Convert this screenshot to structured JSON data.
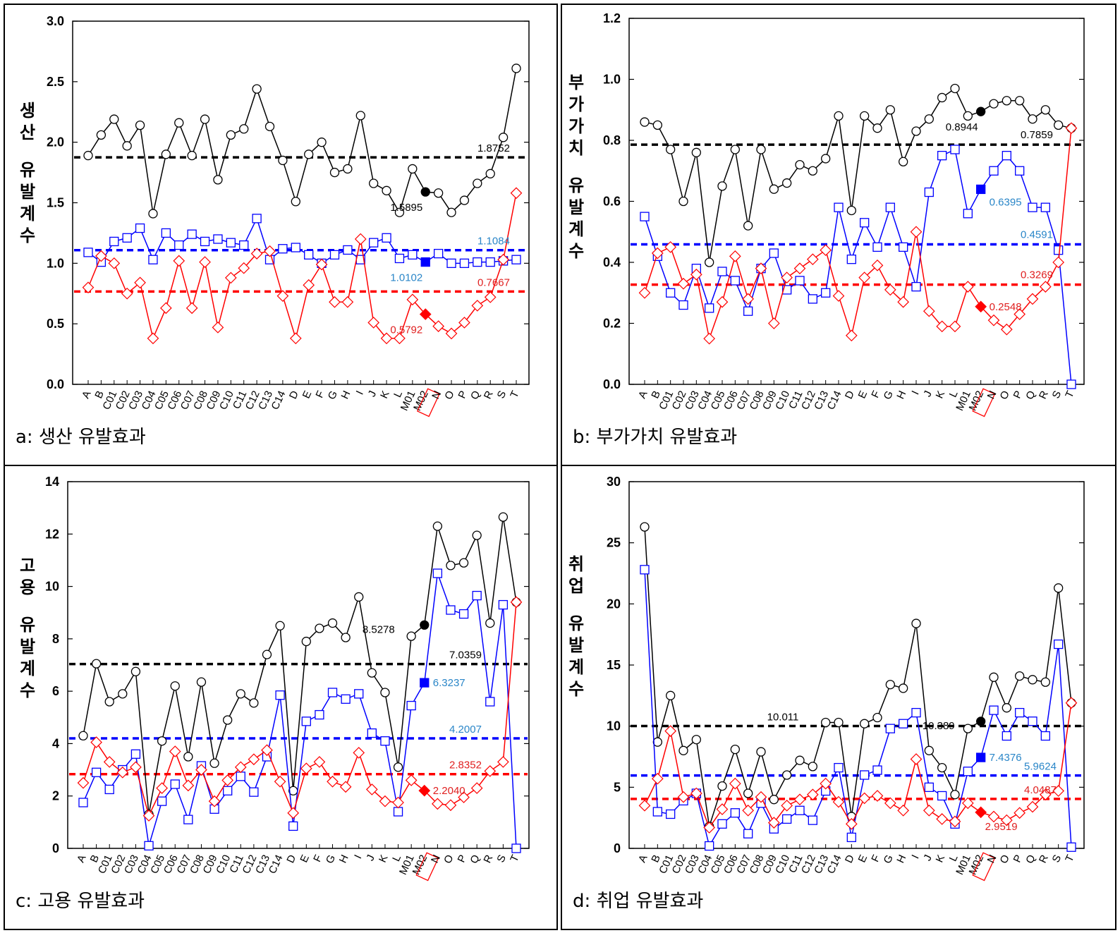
{
  "categories": [
    "A",
    "B",
    "C01",
    "C02",
    "C03",
    "C04",
    "C05",
    "C06",
    "C07",
    "C08",
    "C09",
    "C10",
    "C11",
    "C12",
    "C13",
    "C14",
    "D",
    "E",
    "F",
    "G",
    "H",
    "I",
    "J",
    "K",
    "L",
    "M01",
    "M02",
    "N",
    "O",
    "P",
    "Q",
    "R",
    "S",
    "T"
  ],
  "highlight_category": "M02",
  "colors": {
    "black": "#000000",
    "blue": "#0000ff",
    "red": "#ff0000",
    "blue_label": "#2a86c8",
    "red_label": "#e02020"
  },
  "chart_data": [
    {
      "id": "a",
      "type": "line",
      "caption": "a: 생산 유발효과",
      "ylabel": "생산 유발계수",
      "ylim": [
        0,
        3.0
      ],
      "yticks": [
        "0.0",
        "0.5",
        "1.0",
        "1.5",
        "2.0",
        "2.5",
        "3.0"
      ],
      "grid": false,
      "series": [
        {
          "color": "black",
          "marker": "circle",
          "values": [
            1.89,
            2.06,
            2.19,
            1.97,
            2.14,
            1.41,
            1.9,
            2.16,
            1.89,
            2.19,
            1.69,
            2.06,
            2.11,
            2.44,
            2.13,
            1.85,
            1.51,
            1.9,
            2.0,
            1.75,
            1.78,
            2.22,
            1.66,
            1.6,
            1.42,
            1.78,
            1.5895,
            1.58,
            1.42,
            1.52,
            1.66,
            1.74,
            2.04,
            2.61
          ],
          "mean": 1.8752,
          "mean_label": "1.8752",
          "highlight_label": "1.5895"
        },
        {
          "color": "blue",
          "marker": "square",
          "values": [
            1.09,
            1.01,
            1.18,
            1.21,
            1.29,
            1.03,
            1.25,
            1.15,
            1.24,
            1.18,
            1.2,
            1.17,
            1.15,
            1.37,
            1.03,
            1.12,
            1.13,
            1.07,
            1.0,
            1.07,
            1.11,
            1.03,
            1.17,
            1.21,
            1.04,
            1.07,
            1.0102,
            1.08,
            1.0,
            1.0,
            1.01,
            1.01,
            1.02,
            1.03
          ],
          "mean": 1.1084,
          "mean_label": "1.1084",
          "highlight_label": "1.0102"
        },
        {
          "color": "red",
          "marker": "diamond",
          "values": [
            0.8,
            1.06,
            1.0,
            0.75,
            0.84,
            0.38,
            0.63,
            1.02,
            0.63,
            1.01,
            0.47,
            0.88,
            0.96,
            1.08,
            1.1,
            0.73,
            0.38,
            0.82,
            0.99,
            0.68,
            0.68,
            1.2,
            0.51,
            0.38,
            0.38,
            0.7,
            0.5792,
            0.48,
            0.42,
            0.51,
            0.65,
            0.72,
            1.03,
            1.58
          ],
          "mean": 0.7667,
          "mean_label": "0.7667",
          "highlight_label": "0.5792"
        }
      ]
    },
    {
      "id": "b",
      "type": "line",
      "caption": "b: 부가가치 유발효과",
      "ylabel": "부가가치 유발계수",
      "ylim": [
        0,
        1.2
      ],
      "yticks": [
        "0.0",
        "0.2",
        "0.4",
        "0.6",
        "0.8",
        "1.0",
        "1.2"
      ],
      "grid": false,
      "series": [
        {
          "color": "black",
          "marker": "circle",
          "values": [
            0.86,
            0.85,
            0.77,
            0.6,
            0.76,
            0.4,
            0.65,
            0.77,
            0.52,
            0.77,
            0.64,
            0.66,
            0.72,
            0.7,
            0.74,
            0.88,
            0.57,
            0.88,
            0.84,
            0.9,
            0.73,
            0.83,
            0.87,
            0.94,
            0.97,
            0.88,
            0.8944,
            0.92,
            0.93,
            0.93,
            0.87,
            0.9,
            0.85,
            0.84
          ],
          "mean": 0.7859,
          "mean_label": "0.7859",
          "highlight_label": "0.8944"
        },
        {
          "color": "blue",
          "marker": "square",
          "values": [
            0.55,
            0.42,
            0.3,
            0.26,
            0.38,
            0.25,
            0.37,
            0.34,
            0.24,
            0.38,
            0.43,
            0.31,
            0.34,
            0.28,
            0.3,
            0.58,
            0.41,
            0.53,
            0.45,
            0.58,
            0.45,
            0.32,
            0.63,
            0.75,
            0.77,
            0.56,
            0.6395,
            0.7,
            0.75,
            0.7,
            0.58,
            0.58,
            0.44,
            0.0
          ],
          "mean": 0.4591,
          "mean_label": "0.4591",
          "highlight_label": "0.6395"
        },
        {
          "color": "red",
          "marker": "diamond",
          "values": [
            0.3,
            0.43,
            0.45,
            0.33,
            0.36,
            0.15,
            0.27,
            0.42,
            0.28,
            0.38,
            0.2,
            0.35,
            0.38,
            0.41,
            0.44,
            0.29,
            0.16,
            0.35,
            0.39,
            0.31,
            0.27,
            0.5,
            0.24,
            0.19,
            0.19,
            0.32,
            0.2548,
            0.21,
            0.18,
            0.23,
            0.28,
            0.32,
            0.4,
            0.84
          ],
          "mean": 0.3269,
          "mean_label": "0.3269",
          "highlight_label": "0.2548"
        }
      ]
    },
    {
      "id": "c",
      "type": "line",
      "caption": "c: 고용 유발효과",
      "ylabel": "고용 유발계수",
      "ylim": [
        0,
        14
      ],
      "yticks": [
        "0",
        "2",
        "4",
        "6",
        "8",
        "10",
        "12",
        "14"
      ],
      "grid": false,
      "series": [
        {
          "color": "black",
          "marker": "circle",
          "values": [
            4.3,
            7.05,
            5.6,
            5.9,
            6.75,
            1.3,
            4.1,
            6.2,
            3.5,
            6.35,
            3.25,
            4.9,
            5.9,
            5.55,
            7.4,
            8.5,
            2.2,
            7.9,
            8.4,
            8.6,
            8.05,
            9.6,
            6.7,
            5.95,
            3.1,
            8.1,
            8.5278,
            12.3,
            10.8,
            10.9,
            11.95,
            8.6,
            12.65,
            9.4
          ],
          "mean": 7.0359,
          "mean_label": "7.0359",
          "highlight_label": "8.5278"
        },
        {
          "color": "blue",
          "marker": "square",
          "values": [
            1.75,
            2.9,
            2.25,
            3.0,
            3.6,
            0.1,
            1.8,
            2.45,
            1.1,
            3.15,
            1.5,
            2.2,
            2.75,
            2.15,
            3.5,
            5.85,
            0.85,
            4.85,
            5.1,
            5.95,
            5.7,
            5.9,
            4.4,
            4.1,
            1.4,
            5.45,
            6.3237,
            10.5,
            9.1,
            8.95,
            9.65,
            5.6,
            9.3,
            0.0
          ],
          "mean": 4.2007,
          "mean_label": "4.2007",
          "highlight_label": "6.3237"
        },
        {
          "color": "red",
          "marker": "diamond",
          "values": [
            2.5,
            4.05,
            3.3,
            2.9,
            3.1,
            1.25,
            2.3,
            3.7,
            2.4,
            3.0,
            1.8,
            2.6,
            3.1,
            3.4,
            3.75,
            2.55,
            1.35,
            3.05,
            3.3,
            2.55,
            2.35,
            3.65,
            2.25,
            1.8,
            1.75,
            2.6,
            2.204,
            1.7,
            1.65,
            1.95,
            2.3,
            2.95,
            3.3,
            9.4
          ],
          "mean": 2.8352,
          "mean_label": "2.8352",
          "highlight_label": "2.2040"
        }
      ]
    },
    {
      "id": "d",
      "type": "line",
      "caption": "d: 취업 유발효과",
      "ylabel": "취업 유발계수",
      "ylim": [
        0,
        30
      ],
      "yticks": [
        "0",
        "5",
        "10",
        "15",
        "20",
        "25",
        "30"
      ],
      "grid": false,
      "series": [
        {
          "color": "black",
          "marker": "circle",
          "values": [
            26.3,
            8.7,
            12.5,
            8.0,
            8.9,
            1.8,
            5.1,
            8.1,
            4.5,
            7.9,
            4.0,
            6.0,
            7.2,
            6.7,
            10.3,
            10.3,
            2.6,
            10.2,
            10.7,
            13.4,
            13.1,
            18.4,
            8.0,
            6.6,
            4.4,
            9.8,
            10.389,
            14.0,
            11.5,
            14.1,
            13.8,
            13.6,
            21.3,
            11.9
          ],
          "mean": 10.011,
          "mean_label": "10.011",
          "highlight_label": "10.389"
        },
        {
          "color": "blue",
          "marker": "square",
          "values": [
            22.8,
            3.0,
            2.8,
            3.9,
            4.5,
            0.2,
            2.0,
            2.9,
            1.2,
            3.7,
            1.6,
            2.4,
            3.1,
            2.3,
            4.7,
            6.6,
            0.9,
            6.0,
            6.4,
            9.8,
            10.2,
            11.1,
            5.0,
            4.3,
            2.0,
            6.3,
            7.4376,
            11.3,
            9.2,
            11.1,
            10.4,
            9.2,
            16.7,
            0.1
          ],
          "mean": 5.9624,
          "mean_label": "5.9624",
          "highlight_label": "7.4376"
        },
        {
          "color": "red",
          "marker": "diamond",
          "values": [
            3.5,
            5.7,
            9.6,
            4.2,
            4.5,
            1.7,
            3.2,
            5.3,
            3.1,
            4.2,
            2.1,
            3.5,
            4.0,
            4.4,
            5.3,
            3.8,
            2.0,
            4.1,
            4.3,
            3.7,
            3.1,
            7.3,
            3.1,
            2.4,
            2.2,
            3.7,
            2.9519,
            2.6,
            2.3,
            2.9,
            3.4,
            4.4,
            4.7,
            11.9
          ],
          "mean": 4.0487,
          "mean_label": "4.0487",
          "highlight_label": "2.9519"
        }
      ]
    }
  ]
}
